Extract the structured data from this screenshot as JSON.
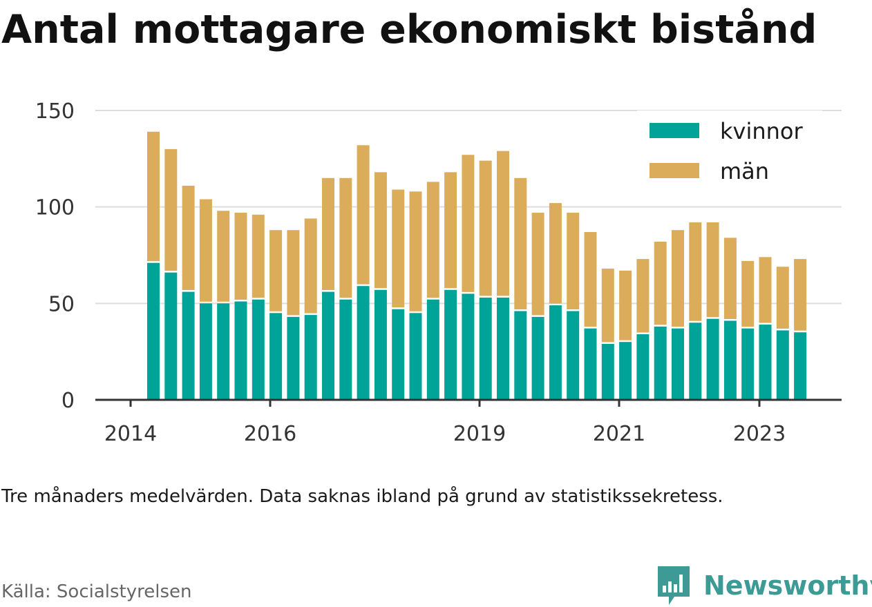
{
  "title": "Antal mottagare ekonomiskt bistånd",
  "note": "Tre månaders medelvärden. Data saknas ibland på grund av statistikssekretess.",
  "source": "Källa: Socialstyrelsen",
  "brand": {
    "name": "Newsworthy",
    "icon": "newsworthy-logo-icon"
  },
  "colors": {
    "kvinnor": "#00a398",
    "man": "#dbad5b",
    "grid": "#dddddd",
    "axis": "#333333"
  },
  "chart_data": {
    "type": "bar",
    "stacked": true,
    "ylim": [
      0,
      150
    ],
    "yticks": [
      0,
      50,
      100,
      150
    ],
    "yticks_labels": [
      "0",
      "50",
      "100",
      "150"
    ],
    "xticks_labels": [
      "2014",
      "2016",
      "2019",
      "2021",
      "2023"
    ],
    "legend_position": "top-right",
    "grid": true,
    "series": [
      {
        "name": "kvinnor",
        "values": [
          71,
          66,
          56,
          50,
          50,
          51,
          52,
          45,
          43,
          44,
          56,
          52,
          59,
          57,
          47,
          45,
          52,
          57,
          55,
          53,
          53,
          46,
          43,
          49,
          46,
          37,
          29,
          30,
          34,
          38,
          37,
          40,
          42,
          41,
          37,
          39,
          36,
          35
        ]
      },
      {
        "name": "män",
        "values": [
          68,
          64,
          55,
          54,
          48,
          46,
          44,
          43,
          45,
          50,
          59,
          63,
          73,
          61,
          62,
          63,
          61,
          61,
          72,
          71,
          76,
          69,
          54,
          53,
          51,
          50,
          39,
          37,
          39,
          44,
          51,
          52,
          50,
          43,
          35,
          35,
          33,
          38
        ]
      }
    ]
  }
}
